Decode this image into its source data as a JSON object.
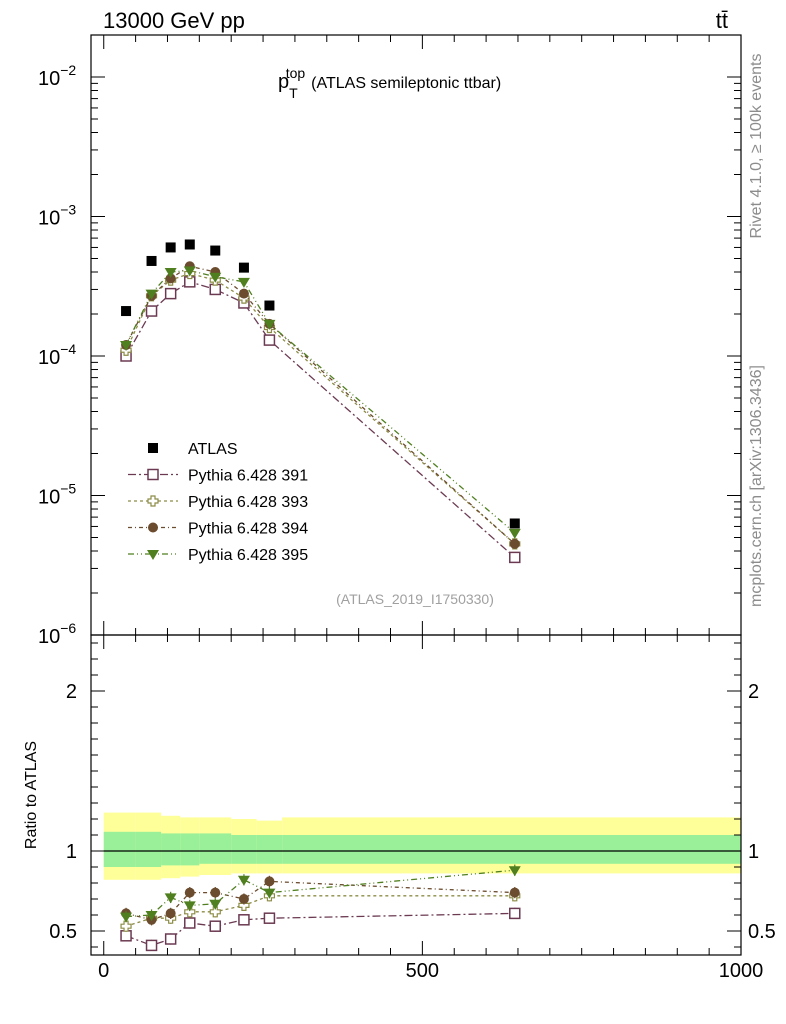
{
  "header": {
    "energy_label": "13000 GeV pp",
    "process_label": "tt̄"
  },
  "side_labels": {
    "rivet": "Rivet 4.1.0, ≥ 100k events",
    "source": "mcplots.cern.ch [arXiv:1306.3436]"
  },
  "chart_data": [
    {
      "type": "scatter",
      "panel": "main",
      "title_main": "p",
      "title_sub": "T",
      "title_sup": "top",
      "title_rest": "(ATLAS semileptonic ttbar)",
      "analysis_id": "(ATLAS_2019_I1750330)",
      "yscale": "log",
      "ylim": [
        1e-06,
        0.02
      ],
      "xlim": [
        -20,
        1000
      ],
      "y_ticks": [
        {
          "value": 0.01,
          "base": "10",
          "exp": "−2"
        },
        {
          "value": 0.001,
          "base": "10",
          "exp": "−3"
        },
        {
          "value": 0.0001,
          "base": "10",
          "exp": "−4"
        },
        {
          "value": 1e-05,
          "base": "10",
          "exp": "−5"
        },
        {
          "value": 1e-06,
          "base": "10",
          "exp": "−6"
        }
      ],
      "x": [
        35,
        75,
        105,
        135,
        175,
        220,
        260,
        645
      ],
      "series": [
        {
          "name": "ATLAS",
          "marker": "filled-square",
          "color": "#000000",
          "values": [
            0.00021,
            0.00048,
            0.0006,
            0.00063,
            0.00057,
            0.00043,
            0.00023,
            6.3e-06
          ]
        },
        {
          "name": "Pythia 6.428 391",
          "marker": "open-square",
          "color": "#6b3a52",
          "dash": "8,3,2,3",
          "values": [
            0.0001,
            0.00021,
            0.00028,
            0.00034,
            0.0003,
            0.00024,
            0.00013,
            3.6e-06
          ]
        },
        {
          "name": "Pythia 6.428 393",
          "marker": "open-cross",
          "color": "#8c8c46",
          "dash": "3,3",
          "values": [
            0.00011,
            0.00027,
            0.00035,
            0.00039,
            0.00035,
            0.00026,
            0.00016,
            4.5e-06
          ]
        },
        {
          "name": "Pythia 6.428 394",
          "marker": "filled-circle",
          "color": "#6b4c2e",
          "dash": "4,3,1,3",
          "values": [
            0.00012,
            0.00027,
            0.00036,
            0.00044,
            0.0004,
            0.00028,
            0.00017,
            4.5e-06
          ]
        },
        {
          "name": "Pythia 6.428 395",
          "marker": "filled-triangle-down",
          "color": "#4f7f1f",
          "dash": "6,3,1,3,1,3",
          "values": [
            0.00012,
            0.00028,
            0.0004,
            0.00041,
            0.00037,
            0.00034,
            0.00017,
            5.4e-06
          ]
        }
      ]
    },
    {
      "type": "scatter",
      "panel": "ratio",
      "ylabel": "Ratio to ATLAS",
      "ylim": [
        0.35,
        2.35
      ],
      "xlim": [
        -20,
        1000
      ],
      "y_ticks": [
        {
          "value": 0.5,
          "label": "0.5"
        },
        {
          "value": 1,
          "label": "1"
        },
        {
          "value": 2,
          "label": "2"
        }
      ],
      "x_ticks": [
        {
          "value": 0,
          "label": "0"
        },
        {
          "value": 500,
          "label": "500"
        },
        {
          "value": 1000,
          "label": "1000"
        }
      ],
      "band_bins": [
        0,
        50,
        90,
        120,
        150,
        200,
        240,
        280,
        1000
      ],
      "band_yellow": [
        [
          0.82,
          1.24
        ],
        [
          0.82,
          1.24
        ],
        [
          0.83,
          1.22
        ],
        [
          0.84,
          1.21
        ],
        [
          0.85,
          1.21
        ],
        [
          0.86,
          1.2
        ],
        [
          0.86,
          1.19
        ],
        [
          0.86,
          1.21
        ]
      ],
      "band_green": [
        [
          0.9,
          1.12
        ],
        [
          0.9,
          1.12
        ],
        [
          0.91,
          1.11
        ],
        [
          0.91,
          1.11
        ],
        [
          0.92,
          1.11
        ],
        [
          0.92,
          1.1
        ],
        [
          0.92,
          1.1
        ],
        [
          0.92,
          1.1
        ]
      ],
      "x": [
        35,
        75,
        105,
        135,
        175,
        220,
        260,
        645
      ],
      "series": [
        {
          "name": "Pythia 6.428 391",
          "values": [
            0.47,
            0.41,
            0.45,
            0.55,
            0.53,
            0.57,
            0.58,
            0.61
          ],
          "err": 0.035
        },
        {
          "name": "Pythia 6.428 393",
          "values": [
            0.53,
            0.58,
            0.58,
            0.62,
            0.62,
            0.66,
            0.72,
            0.72
          ],
          "err": 0.035
        },
        {
          "name": "Pythia 6.428 394",
          "values": [
            0.61,
            0.57,
            0.61,
            0.74,
            0.74,
            0.7,
            0.81,
            0.74
          ],
          "err": 0.035
        },
        {
          "name": "Pythia 6.428 395",
          "values": [
            0.59,
            0.6,
            0.71,
            0.66,
            0.67,
            0.82,
            0.74,
            0.88
          ],
          "err": 0.035
        }
      ]
    }
  ]
}
